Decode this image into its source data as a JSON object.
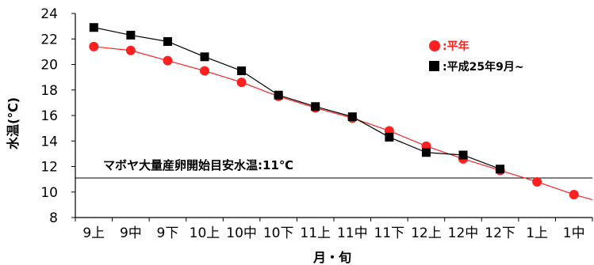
{
  "chart_data": {
    "type": "line",
    "categories": [
      "9上",
      "9中",
      "9下",
      "10上",
      "10中",
      "10下",
      "11上",
      "11中",
      "11下",
      "12上",
      "12中",
      "12下",
      "1上",
      "1中"
    ],
    "xlabel": "月・旬",
    "ylabel": "水温(℃)",
    "ylim": [
      8,
      24
    ],
    "yticks": [
      8,
      10,
      12,
      14,
      16,
      18,
      20,
      22,
      24
    ],
    "grid": false,
    "legend_position": "top-right",
    "series": [
      {
        "name": "平年",
        "color": "#ff2020",
        "marker": "circle",
        "values": [
          21.4,
          21.1,
          20.3,
          19.5,
          18.6,
          17.5,
          16.6,
          15.8,
          14.8,
          13.6,
          12.6,
          11.7,
          10.8,
          9.8
        ],
        "trailing_value": 9.4
      },
      {
        "name": "平成25年9月~",
        "color": "#000000",
        "marker": "square",
        "values": [
          22.9,
          22.3,
          21.8,
          20.6,
          19.5,
          17.6,
          16.7,
          15.9,
          14.3,
          13.1,
          12.9,
          11.8,
          null,
          null
        ]
      }
    ],
    "reference_line": {
      "value": 11.1,
      "label": "マボヤ大量産卵開始目安水温:11℃"
    }
  }
}
